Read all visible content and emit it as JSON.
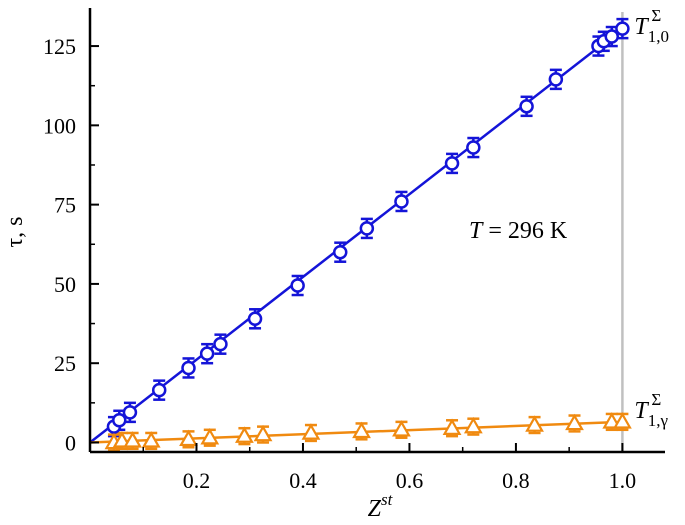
{
  "chart_data": {
    "type": "scatter",
    "xlabel": "Z",
    "xlabel_sup": "st",
    "ylabel": "τ, s",
    "xlim": [
      0,
      1.08
    ],
    "ylim": [
      -3,
      137
    ],
    "xticks": [
      0.2,
      0.4,
      0.6,
      0.8,
      1.0
    ],
    "xtick_labels": [
      "0.2",
      "0.4",
      "0.6",
      "0.8",
      "1.0"
    ],
    "yticks": [
      0,
      25,
      50,
      75,
      100,
      125
    ],
    "ytick_labels": [
      "0",
      "25",
      "50",
      "75",
      "100",
      "125"
    ],
    "annotation": {
      "T": "T",
      "rest": " = 296 K"
    },
    "reference_line_x": 1.0,
    "series": [
      {
        "name_base": "T",
        "name_sup": "Σ",
        "name_sub": "1,0",
        "color": "#1414d8",
        "marker": "circle",
        "x": [
          0.045,
          0.055,
          0.075,
          0.13,
          0.185,
          0.22,
          0.245,
          0.31,
          0.39,
          0.47,
          0.52,
          0.585,
          0.68,
          0.72,
          0.82,
          0.875,
          0.955,
          0.965,
          0.98,
          1.0
        ],
        "y": [
          5,
          7,
          9.5,
          16.5,
          23.5,
          28,
          31,
          39,
          49.5,
          60,
          67.5,
          76,
          88,
          93,
          106,
          114.5,
          125,
          126.5,
          128,
          130.5
        ],
        "err": [
          3,
          3,
          3,
          3,
          3,
          3,
          3,
          3,
          3,
          3,
          3,
          3,
          3,
          3,
          3,
          3,
          3,
          3,
          3,
          3
        ],
        "fit": [
          [
            0,
            0
          ],
          [
            1.0,
            130.5
          ]
        ]
      },
      {
        "name_base": "T",
        "name_sup": "Σ",
        "name_sub": "1,γ",
        "color": "#f08a10",
        "marker": "triangle",
        "x": [
          0.045,
          0.06,
          0.08,
          0.115,
          0.185,
          0.225,
          0.29,
          0.325,
          0.415,
          0.51,
          0.585,
          0.68,
          0.72,
          0.835,
          0.91,
          0.98,
          1.0
        ],
        "y": [
          0,
          0.5,
          0.5,
          0.5,
          1,
          1.5,
          2,
          2.5,
          3,
          3.5,
          4,
          4.5,
          5,
          5.5,
          6,
          6.5,
          6.5
        ],
        "err": [
          2.5,
          2.5,
          2.5,
          2.5,
          2.5,
          2.5,
          2.5,
          2.5,
          2.5,
          2.5,
          2.5,
          2.5,
          2.5,
          2.5,
          2.5,
          2.5,
          2.5
        ],
        "fit": [
          [
            0,
            0
          ],
          [
            1.0,
            6.5
          ]
        ]
      }
    ]
  }
}
